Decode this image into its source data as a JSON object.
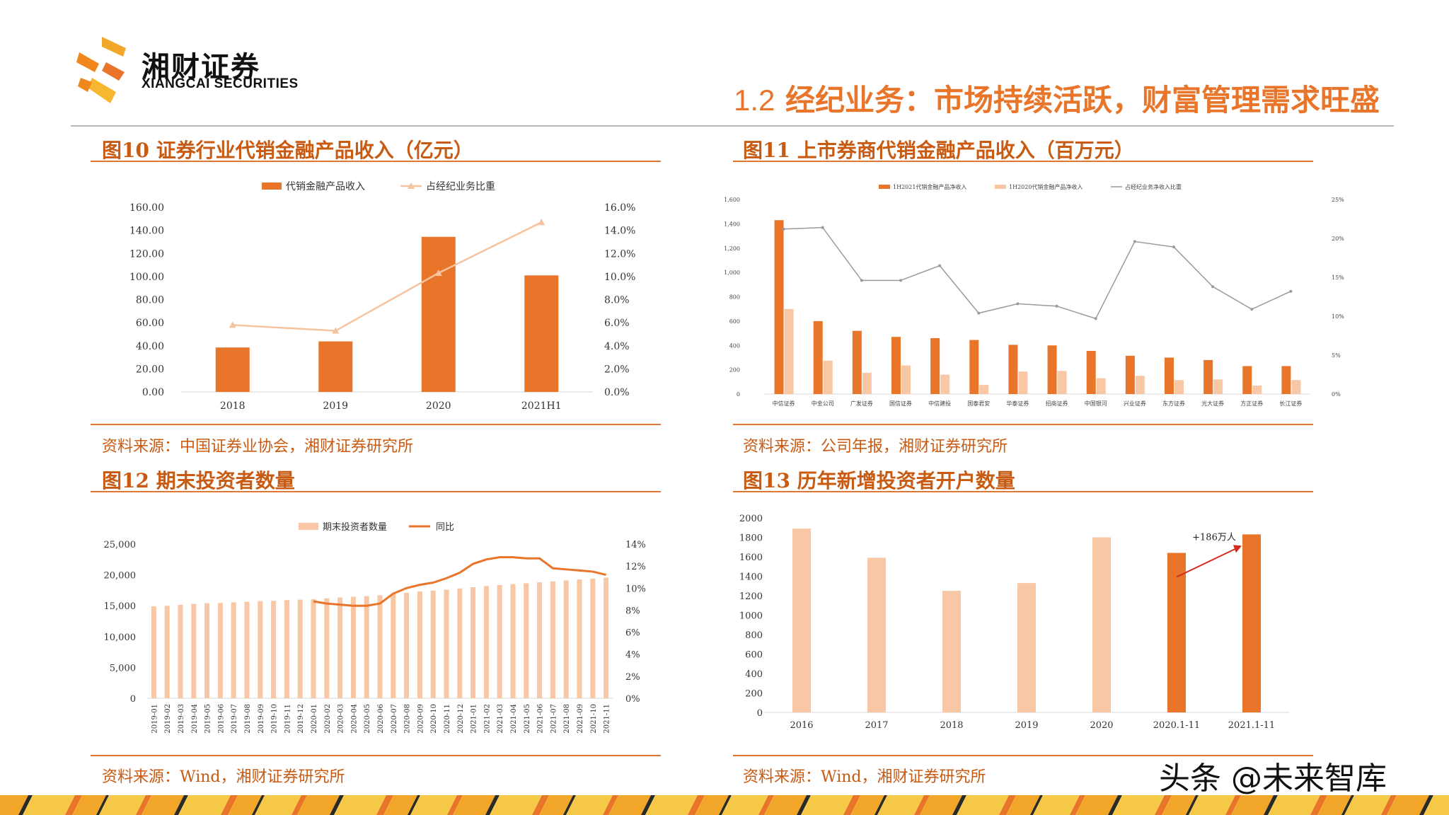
{
  "header": {
    "logo_cn": "湘财证券",
    "logo_en": "XIANGCAI SECURITIES",
    "title_num": "1.2",
    "title_text": "经纪业务：市场持续活跃，财富管理需求旺盛"
  },
  "colors": {
    "accent": "#e8752a",
    "light": "#f8c7a6",
    "line_light": "#f6c39f",
    "gray_line": "#9a9a9a",
    "title": "#c85a12"
  },
  "fig10": {
    "title": "图10 证券行业代销金融产品收入（亿元）",
    "source": "资料来源：中国证券业协会，湘财证券研究所"
  },
  "fig11": {
    "title": "图11 上市券商代销金融产品收入（百万元）",
    "source": "资料来源：公司年报，湘财证券研究所"
  },
  "fig12": {
    "title": "图12 期末投资者数量",
    "source": "资料来源：Wind，湘财证券研究所"
  },
  "fig13": {
    "title": "图13 历年新增投资者开户数量",
    "source": "资料来源：Wind，湘财证券研究所"
  },
  "watermark": "头条 @未来智库",
  "chart_data": [
    {
      "id": "fig10",
      "type": "bar",
      "categories": [
        "2018",
        "2019",
        "2020",
        "2021H1"
      ],
      "series": [
        {
          "name": "代销金融产品收入",
          "type": "bar",
          "axis": "left",
          "values": [
            38.5,
            43.8,
            134.4,
            101.0
          ]
        },
        {
          "name": "占经纪业务比重",
          "type": "line",
          "axis": "right",
          "values": [
            5.8,
            5.3,
            10.3,
            14.7
          ]
        }
      ],
      "ylim": [
        0,
        160
      ],
      "y_ticks": [
        "0.00",
        "20.00",
        "40.00",
        "60.00",
        "80.00",
        "100.00",
        "120.00",
        "140.00",
        "160.00"
      ],
      "y2lim": [
        0,
        16
      ],
      "y2_ticks": [
        "0.0%",
        "2.0%",
        "4.0%",
        "6.0%",
        "8.0%",
        "10.0%",
        "12.0%",
        "14.0%",
        "16.0%"
      ],
      "legend": "top"
    },
    {
      "id": "fig11",
      "type": "bar",
      "categories": [
        "中信证券",
        "中金公司",
        "广发证券",
        "国信证券",
        "中信建投",
        "国泰君安",
        "华泰证券",
        "招商证券",
        "中国银河",
        "兴业证券",
        "东方证券",
        "光大证券",
        "方正证券",
        "长江证券"
      ],
      "series": [
        {
          "name": "1H2021代销金融产品净收入",
          "type": "bar",
          "axis": "left",
          "values": [
            1430,
            600,
            520,
            470,
            460,
            445,
            405,
            400,
            355,
            315,
            300,
            280,
            230,
            230
          ]
        },
        {
          "name": "1H2020代销金融产品净收入",
          "type": "bar",
          "axis": "left",
          "values": [
            700,
            275,
            175,
            235,
            160,
            75,
            185,
            190,
            130,
            150,
            115,
            120,
            70,
            115
          ]
        },
        {
          "name": "占经纪业务净收入比重",
          "type": "line",
          "axis": "right",
          "values": [
            21.2,
            21.4,
            14.6,
            14.6,
            16.5,
            10.4,
            11.6,
            11.3,
            9.7,
            19.6,
            18.9,
            13.8,
            10.9,
            13.2
          ]
        }
      ],
      "ylim": [
        0,
        1600
      ],
      "y_ticks": [
        "0",
        "200",
        "400",
        "600",
        "800",
        "1,000",
        "1,200",
        "1,400",
        "1,600"
      ],
      "y2lim": [
        0,
        25
      ],
      "y2_ticks": [
        "0%",
        "5%",
        "10%",
        "15%",
        "20%",
        "25%"
      ],
      "legend": "top"
    },
    {
      "id": "fig12",
      "type": "bar",
      "categories": [
        "2019-01",
        "2019-02",
        "2019-03",
        "2019-04",
        "2019-05",
        "2019-06",
        "2019-07",
        "2019-08",
        "2019-09",
        "2019-10",
        "2019-11",
        "2019-12",
        "2020-01",
        "2020-02",
        "2020-03",
        "2020-04",
        "2020-05",
        "2020-06",
        "2020-07",
        "2020-08",
        "2020-09",
        "2020-10",
        "2020-11",
        "2020-12",
        "2021-01",
        "2021-02",
        "2021-03",
        "2021-04",
        "2021-05",
        "2021-06",
        "2021-07",
        "2021-08",
        "2021-09",
        "2021-10",
        "2021-11"
      ],
      "series": [
        {
          "name": "期末投资者数量",
          "type": "bar",
          "axis": "left",
          "values": [
            14900,
            15000,
            15150,
            15300,
            15400,
            15450,
            15550,
            15650,
            15750,
            15800,
            15900,
            15975,
            16050,
            16200,
            16350,
            16450,
            16550,
            16700,
            16900,
            17100,
            17300,
            17450,
            17600,
            17800,
            18000,
            18200,
            18350,
            18500,
            18650,
            18800,
            18950,
            19100,
            19250,
            19400,
            19550
          ]
        },
        {
          "name": "同比",
          "type": "line",
          "axis": "right",
          "values": [
            null,
            null,
            null,
            null,
            null,
            null,
            null,
            null,
            null,
            null,
            null,
            null,
            8.8,
            8.6,
            8.5,
            8.4,
            8.4,
            8.6,
            9.5,
            10.0,
            10.3,
            10.5,
            10.9,
            11.4,
            12.2,
            12.6,
            12.8,
            12.8,
            12.7,
            12.7,
            11.8,
            11.7,
            11.6,
            11.5,
            11.2
          ]
        }
      ],
      "ylim": [
        0,
        25000
      ],
      "y_ticks": [
        "0",
        "5,000",
        "10,000",
        "15,000",
        "20,000",
        "25,000"
      ],
      "y2lim": [
        0,
        14
      ],
      "y2_ticks": [
        "0%",
        "2%",
        "4%",
        "6%",
        "8%",
        "10%",
        "12%",
        "14%"
      ],
      "legend": "top"
    },
    {
      "id": "fig13",
      "type": "bar",
      "categories": [
        "2016",
        "2017",
        "2018",
        "2019",
        "2020",
        "2020.1-11",
        "2021.1-11"
      ],
      "values": [
        1890,
        1590,
        1250,
        1330,
        1800,
        1640,
        1830
      ],
      "highlight": [
        false,
        false,
        false,
        false,
        false,
        true,
        true
      ],
      "ylim": [
        0,
        2000
      ],
      "y_ticks": [
        "0",
        "200",
        "400",
        "600",
        "800",
        "1000",
        "1200",
        "1400",
        "1600",
        "1800",
        "2000"
      ],
      "annotation": "+186万人"
    }
  ]
}
